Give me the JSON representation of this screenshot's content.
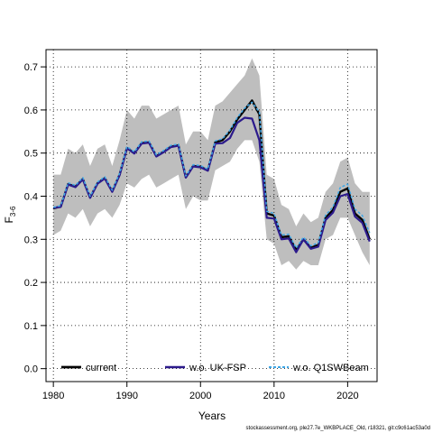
{
  "chart_data": {
    "type": "line",
    "xlabel": "Years",
    "ylabel_main": "F",
    "ylabel_sub": "3-6",
    "xlim": [
      1979,
      2024
    ],
    "ylim": [
      -0.03,
      0.74
    ],
    "x_ticks": [
      1980,
      1990,
      2000,
      2010,
      2020
    ],
    "y_ticks": [
      0.0,
      0.1,
      0.2,
      0.3,
      0.4,
      0.5,
      0.6,
      0.7
    ],
    "y_tick_labels": [
      "0.0",
      "0.1",
      "0.2",
      "0.3",
      "0.4",
      "0.5",
      "0.6",
      "0.7"
    ],
    "grid": true,
    "legend_placement": "bottom",
    "x": [
      1980,
      1981,
      1982,
      1983,
      1984,
      1985,
      1986,
      1987,
      1988,
      1989,
      1990,
      1991,
      1992,
      1993,
      1994,
      1995,
      1996,
      1997,
      1998,
      1999,
      2000,
      2001,
      2002,
      2003,
      2004,
      2005,
      2006,
      2007,
      2008,
      2009,
      2010,
      2011,
      2012,
      2013,
      2014,
      2015,
      2016,
      2017,
      2018,
      2019,
      2020,
      2021,
      2022,
      2023
    ],
    "band": {
      "color": "#bebebe",
      "upper": [
        0.45,
        0.45,
        0.51,
        0.5,
        0.52,
        0.47,
        0.51,
        0.52,
        0.47,
        0.53,
        0.6,
        0.58,
        0.61,
        0.61,
        0.58,
        0.59,
        0.6,
        0.61,
        0.52,
        0.55,
        0.55,
        0.53,
        0.61,
        0.62,
        0.64,
        0.66,
        0.68,
        0.72,
        0.68,
        0.45,
        0.44,
        0.38,
        0.37,
        0.33,
        0.36,
        0.34,
        0.35,
        0.41,
        0.43,
        0.48,
        0.49,
        0.43,
        0.41,
        0.41
      ],
      "lower": [
        0.31,
        0.32,
        0.36,
        0.35,
        0.37,
        0.33,
        0.36,
        0.37,
        0.35,
        0.38,
        0.43,
        0.42,
        0.44,
        0.45,
        0.42,
        0.43,
        0.44,
        0.45,
        0.37,
        0.4,
        0.39,
        0.39,
        0.46,
        0.47,
        0.48,
        0.51,
        0.53,
        0.53,
        0.48,
        0.3,
        0.29,
        0.24,
        0.25,
        0.23,
        0.25,
        0.24,
        0.24,
        0.3,
        0.31,
        0.35,
        0.35,
        0.31,
        0.27,
        0.24
      ]
    },
    "series": [
      {
        "name": "current",
        "color": "#000000",
        "width": 2.4,
        "dash": "",
        "values": [
          0.372,
          0.376,
          0.428,
          0.422,
          0.44,
          0.397,
          0.43,
          0.442,
          0.411,
          0.45,
          0.512,
          0.5,
          0.523,
          0.525,
          0.493,
          0.503,
          0.515,
          0.518,
          0.444,
          0.47,
          0.468,
          0.46,
          0.525,
          0.53,
          0.55,
          0.578,
          0.6,
          0.622,
          0.59,
          0.36,
          0.355,
          0.305,
          0.307,
          0.275,
          0.3,
          0.28,
          0.287,
          0.35,
          0.368,
          0.41,
          0.418,
          0.36,
          0.345,
          0.3
        ]
      },
      {
        "name": "w.o. UK-FSP",
        "color": "#2c1a8c",
        "width": 2.2,
        "dash": "",
        "values": [
          0.373,
          0.375,
          0.427,
          0.421,
          0.439,
          0.396,
          0.429,
          0.441,
          0.41,
          0.449,
          0.511,
          0.499,
          0.522,
          0.524,
          0.492,
          0.502,
          0.514,
          0.517,
          0.443,
          0.469,
          0.467,
          0.459,
          0.522,
          0.523,
          0.535,
          0.57,
          0.582,
          0.58,
          0.53,
          0.35,
          0.348,
          0.3,
          0.302,
          0.27,
          0.3,
          0.278,
          0.283,
          0.345,
          0.362,
          0.4,
          0.405,
          0.353,
          0.338,
          0.295
        ]
      },
      {
        "name": "w.o. Q1SWBeam",
        "color": "#3fa7e6",
        "width": 1.5,
        "dash": "3,2",
        "values": [
          0.374,
          0.378,
          0.431,
          0.425,
          0.443,
          0.4,
          0.433,
          0.445,
          0.414,
          0.453,
          0.515,
          0.503,
          0.526,
          0.528,
          0.496,
          0.506,
          0.518,
          0.521,
          0.447,
          0.473,
          0.471,
          0.463,
          0.528,
          0.533,
          0.553,
          0.582,
          0.604,
          0.618,
          0.595,
          0.365,
          0.36,
          0.31,
          0.312,
          0.28,
          0.305,
          0.285,
          0.292,
          0.356,
          0.375,
          0.42,
          0.428,
          0.37,
          0.355,
          0.315
        ]
      }
    ]
  },
  "footer": "stockassessment.org, ple27.7e_WKBPLACE_Old, r18321, git:c9c61ac53a0d"
}
